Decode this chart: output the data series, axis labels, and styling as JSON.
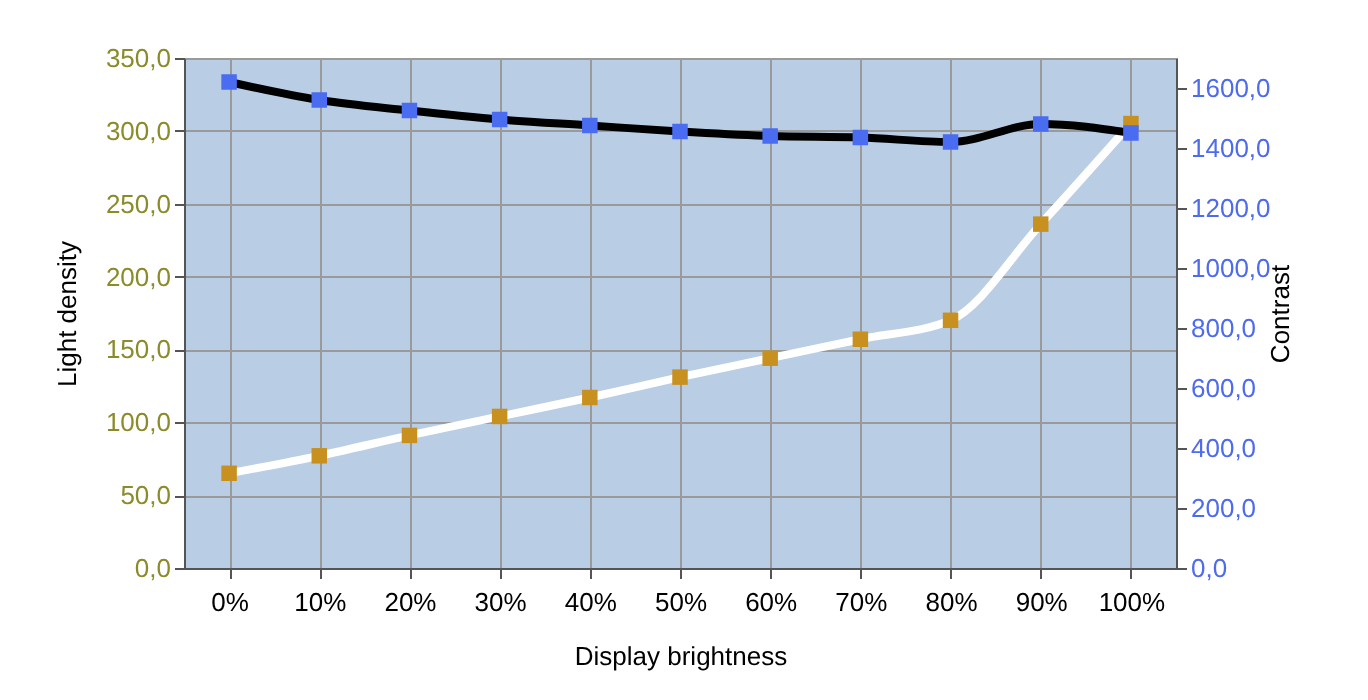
{
  "chart_data": {
    "type": "line",
    "xlabel": "Display brightness",
    "ylabel": "Light density",
    "y2label": "Contrast",
    "categories": [
      "0%",
      "10%",
      "20%",
      "30%",
      "40%",
      "50%",
      "60%",
      "70%",
      "80%",
      "90%",
      "100%"
    ],
    "series": [
      {
        "color": "#ffffff",
        "values": [
          65,
          77,
          91,
          104,
          117,
          131,
          144,
          157,
          170,
          236,
          305
        ]
      },
      {
        "color": "#000000",
        "axis": "y2",
        "values": [
          1620,
          1560,
          1525,
          1495,
          1475,
          1455,
          1440,
          1435,
          1420,
          1480,
          1450
        ]
      }
    ],
    "ylim": [
      0,
      350
    ],
    "yticks": [
      {
        "value": 0,
        "label": "0,0"
      },
      {
        "value": 50,
        "label": "50,0"
      },
      {
        "value": 100,
        "label": "100,0"
      },
      {
        "value": 150,
        "label": "150,0"
      },
      {
        "value": 200,
        "label": "200,0"
      },
      {
        "value": 250,
        "label": "250,0"
      },
      {
        "value": 300,
        "label": "300,0"
      },
      {
        "value": 350,
        "label": "350,0"
      }
    ],
    "y2lim": [
      0,
      1700
    ],
    "y2ticks": [
      {
        "value": 0,
        "label": "0,0"
      },
      {
        "value": 200,
        "label": "200,0"
      },
      {
        "value": 400,
        "label": "400,0"
      },
      {
        "value": 600,
        "label": "600,0"
      },
      {
        "value": 800,
        "label": "800,0"
      },
      {
        "value": 1000,
        "label": "1000,0"
      },
      {
        "value": 1200,
        "label": "1200,0"
      },
      {
        "value": 1400,
        "label": "1400,0"
      },
      {
        "value": 1600,
        "label": "1600,0"
      }
    ],
    "grid": true,
    "marker": "square",
    "line_style": "solid"
  }
}
